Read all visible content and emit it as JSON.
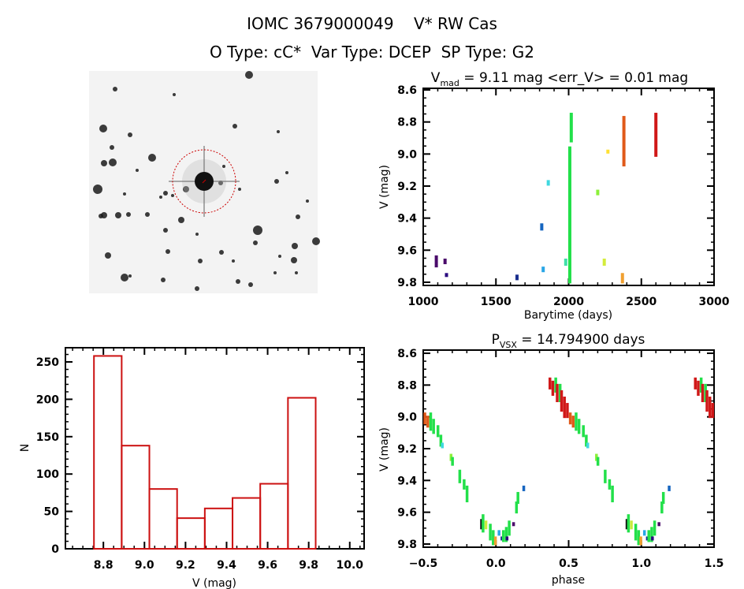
{
  "header": {
    "title": "IOMC 3679000049    V* RW Cas",
    "subtitle": "O Type: cC*  Var Type: DCEP  SP Type: G2"
  },
  "sky_image": {
    "type": "image",
    "circle_color": "#cc0000"
  },
  "chart_data": [
    {
      "id": "lightcurve",
      "type": "scatter",
      "title_main": "V",
      "title_sub": "mad",
      "title_rest": " = 9.11 mag <err_V> = 0.01 mag",
      "xlabel": "Barytime (days)",
      "ylabel": "V (mag)",
      "xlim": [
        1000,
        3000
      ],
      "ylim": [
        9.82,
        8.59
      ],
      "y_inverted": true,
      "xticks": [
        "1000",
        "1500",
        "2000",
        "2500",
        "3000"
      ],
      "yticks": [
        "8.6",
        "8.8",
        "9.0",
        "9.2",
        "9.4",
        "9.6",
        "9.8"
      ],
      "grid": false,
      "points": [
        {
          "t": 1090,
          "v": [
            9.64,
            9.7
          ],
          "color": "#4a0a6a"
        },
        {
          "t": 1150,
          "v": [
            9.66,
            9.68
          ],
          "color": "#4a0a6a"
        },
        {
          "t": 1160,
          "v": [
            9.75,
            9.76
          ],
          "color": "#2a0a7f"
        },
        {
          "t": 1645,
          "v": [
            9.76,
            9.78
          ],
          "color": "#1a2f8e"
        },
        {
          "t": 1815,
          "v": [
            9.44,
            9.47
          ],
          "color": "#1565c0"
        },
        {
          "t": 1825,
          "v": [
            9.71,
            9.73
          ],
          "color": "#29a6e6"
        },
        {
          "t": 1860,
          "v": [
            9.17,
            9.19
          ],
          "color": "#40d8e0"
        },
        {
          "t": 1980,
          "v": [
            9.66,
            9.69
          ],
          "color": "#40e0a8"
        },
        {
          "t": 2008,
          "v": [
            8.96,
            9.8
          ],
          "color": "#22e04a"
        },
        {
          "t": 2018,
          "v": [
            8.75,
            8.92
          ],
          "color": "#22e04a"
        },
        {
          "t": 2200,
          "v": [
            9.23,
            9.25
          ],
          "color": "#8cf03a"
        },
        {
          "t": 2245,
          "v": [
            9.66,
            9.69
          ],
          "color": "#d4ec3c"
        },
        {
          "t": 2270,
          "v": [
            8.98,
            8.99
          ],
          "color": "#ffe033"
        },
        {
          "t": 2370,
          "v": [
            9.75,
            9.8
          ],
          "color": "#f0a030"
        },
        {
          "t": 2380,
          "v": [
            8.77,
            9.07
          ],
          "color": "#e05a1a"
        },
        {
          "t": 2600,
          "v": [
            8.75,
            9.01
          ],
          "color": "#d01818"
        }
      ]
    },
    {
      "id": "histogram",
      "type": "bar",
      "xlabel": "V (mag)",
      "ylabel": "N",
      "xlim": [
        8.615,
        10.07
      ],
      "ylim": [
        0,
        269
      ],
      "xticks": [
        "8.8",
        "9.0",
        "9.2",
        "9.4",
        "9.6",
        "9.8",
        "10.0"
      ],
      "yticks": [
        "0",
        "50",
        "100",
        "150",
        "200",
        "250"
      ],
      "bin_edges": [
        8.754,
        8.889,
        9.024,
        9.159,
        9.294,
        9.429,
        9.564,
        9.699,
        9.834
      ],
      "values": [
        258,
        138,
        80,
        41,
        54,
        68,
        87,
        202
      ],
      "bar_color": "#cc1111",
      "grid": false
    },
    {
      "id": "phased",
      "type": "scatter",
      "title_main": "P",
      "title_sub": "VSX",
      "title_rest": " = 14.794900 days",
      "xlabel": "phase",
      "ylabel": "V (mag)",
      "xlim": [
        -0.5,
        1.5
      ],
      "ylim": [
        9.82,
        8.58
      ],
      "y_inverted": true,
      "xticks": [
        "-0.5",
        "0.0",
        "0.5",
        "1.0",
        "1.5"
      ],
      "yticks": [
        "8.6",
        "8.8",
        "9.0",
        "9.2",
        "9.4",
        "9.6",
        "9.8"
      ],
      "grid": false,
      "points": [
        {
          "phase": 0.37,
          "v": [
            8.76,
            8.82
          ],
          "color": "#d01818"
        },
        {
          "phase": 0.39,
          "v": [
            8.78,
            8.86
          ],
          "color": "#d01818"
        },
        {
          "phase": 0.41,
          "v": [
            8.76,
            8.84
          ],
          "color": "#22e04a"
        },
        {
          "phase": 0.42,
          "v": [
            8.8,
            8.9
          ],
          "color": "#d01818"
        },
        {
          "phase": 0.44,
          "v": [
            8.8,
            8.9
          ],
          "color": "#22e04a"
        },
        {
          "phase": 0.45,
          "v": [
            8.84,
            8.96
          ],
          "color": "#d01818"
        },
        {
          "phase": 0.47,
          "v": [
            8.88,
            9.0
          ],
          "color": "#d01818"
        },
        {
          "phase": 0.49,
          "v": [
            8.92,
            9.0
          ],
          "color": "#d01818"
        },
        {
          "phase": 0.51,
          "v": [
            8.98,
            9.04
          ],
          "color": "#e05a1a"
        },
        {
          "phase": 0.53,
          "v": [
            9.0,
            9.06
          ],
          "color": "#e05a1a"
        },
        {
          "phase": 0.55,
          "v": [
            8.98,
            9.08
          ],
          "color": "#22e04a"
        },
        {
          "phase": 0.57,
          "v": [
            9.02,
            9.1
          ],
          "color": "#22e04a"
        },
        {
          "phase": 0.6,
          "v": [
            9.06,
            9.12
          ],
          "color": "#22e04a"
        },
        {
          "phase": 0.62,
          "v": [
            9.12,
            9.18
          ],
          "color": "#22e04a"
        },
        {
          "phase": 0.63,
          "v": [
            9.17,
            9.19
          ],
          "color": "#40d8e0"
        },
        {
          "phase": 0.69,
          "v": [
            9.24,
            9.27
          ],
          "color": "#8cf03a"
        },
        {
          "phase": 0.7,
          "v": [
            9.26,
            9.3
          ],
          "color": "#22e04a"
        },
        {
          "phase": 0.75,
          "v": [
            9.34,
            9.41
          ],
          "color": "#22e04a"
        },
        {
          "phase": 0.78,
          "v": [
            9.4,
            9.45
          ],
          "color": "#22e04a"
        },
        {
          "phase": 0.8,
          "v": [
            9.44,
            9.53
          ],
          "color": "#22e04a"
        },
        {
          "phase": 0.9,
          "v": [
            9.65,
            9.7
          ],
          "color": "#101010"
        },
        {
          "phase": 0.91,
          "v": [
            9.62,
            9.72
          ],
          "color": "#22e04a"
        },
        {
          "phase": 0.93,
          "v": [
            9.66,
            9.7
          ],
          "color": "#c8ec3c"
        },
        {
          "phase": 0.96,
          "v": [
            9.68,
            9.77
          ],
          "color": "#22e04a"
        },
        {
          "phase": 0.98,
          "v": [
            9.72,
            9.8
          ],
          "color": "#22e04a"
        },
        {
          "phase": 0.995,
          "v": [
            9.76,
            9.8
          ],
          "color": "#f0a030"
        },
        {
          "phase": 0.02,
          "v": [
            9.72,
            9.74
          ],
          "color": "#29a6e6"
        },
        {
          "phase": 0.04,
          "v": [
            9.76,
            9.77
          ],
          "color": "#1a2f8e"
        },
        {
          "phase": 0.05,
          "v": [
            9.72,
            9.78
          ],
          "color": "#22e04a"
        },
        {
          "phase": 0.07,
          "v": [
            9.7,
            9.78
          ],
          "color": "#22e04a"
        },
        {
          "phase": 0.075,
          "v": [
            9.76,
            9.77
          ],
          "color": "#2a0a7f"
        },
        {
          "phase": 0.09,
          "v": [
            9.66,
            9.74
          ],
          "color": "#22e04a"
        },
        {
          "phase": 0.12,
          "v": [
            9.67,
            9.68
          ],
          "color": "#4a0a6a"
        },
        {
          "phase": 0.14,
          "v": [
            9.54,
            9.6
          ],
          "color": "#22e04a"
        },
        {
          "phase": 0.15,
          "v": [
            9.48,
            9.54
          ],
          "color": "#22e04a"
        },
        {
          "phase": 0.19,
          "v": [
            9.44,
            9.46
          ],
          "color": "#1565c0"
        }
      ]
    }
  ]
}
